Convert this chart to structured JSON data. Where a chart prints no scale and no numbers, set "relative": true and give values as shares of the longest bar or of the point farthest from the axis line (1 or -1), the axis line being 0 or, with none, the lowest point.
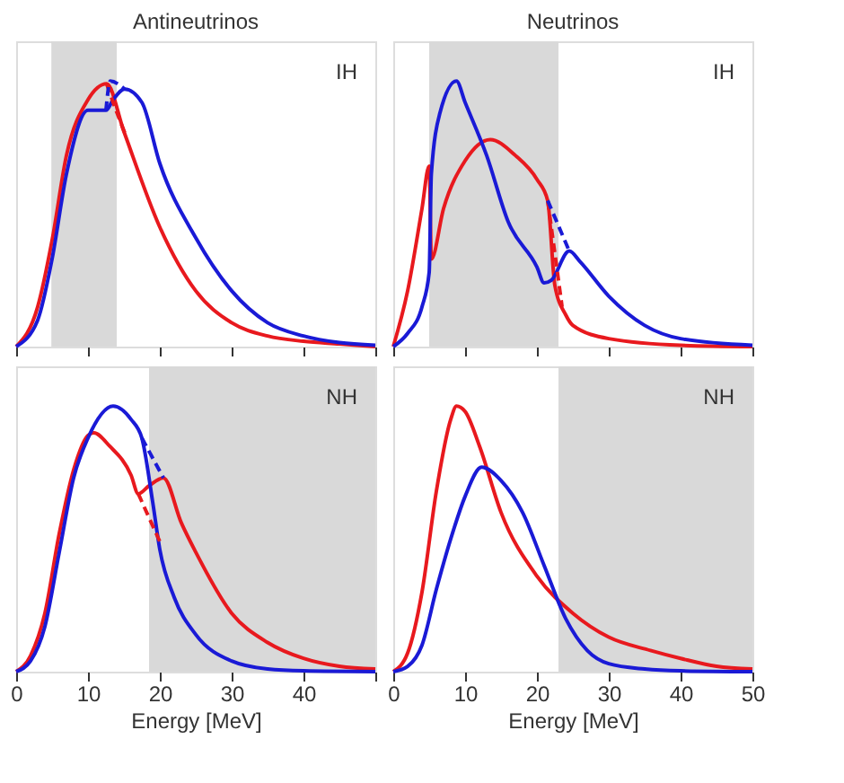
{
  "chart_data": [
    {
      "type": "line",
      "title": "Antineutrinos",
      "xlim": [
        0,
        50
      ],
      "xticks": [
        0,
        10,
        20,
        30,
        40,
        50
      ],
      "tick_labels": false,
      "relative": true,
      "grid": false,
      "annotations": [
        "IH"
      ],
      "bands": [
        {
          "axis": "x",
          "from": 4.9,
          "to": 14.0,
          "color": "#d9d9d9"
        }
      ],
      "series": [
        {
          "color": "#e8191e",
          "line_style": "solid",
          "x": [
            0,
            3,
            5,
            7,
            10,
            12.6,
            15,
            20,
            25,
            30,
            35,
            40,
            45,
            50
          ],
          "values": [
            0,
            0.15,
            0.4,
            0.72,
            0.93,
            0.99,
            0.81,
            0.45,
            0.21,
            0.09,
            0.04,
            0.02,
            0.01,
            0
          ]
        },
        {
          "color": "#1a1ad6",
          "line_style": "solid",
          "x": [
            0,
            3,
            5,
            7,
            10,
            12.5,
            13.5,
            15.1,
            17.5,
            20,
            25,
            30,
            35,
            40,
            45,
            50
          ],
          "values": [
            0,
            0.1,
            0.33,
            0.65,
            0.89,
            0.89,
            0.93,
            0.97,
            0.92,
            0.69,
            0.41,
            0.21,
            0.09,
            0.04,
            0.015,
            0.005
          ]
        },
        {
          "color": "#e8191e",
          "line_style": "dashed",
          "x": [
            12.6,
            13.5,
            15.2
          ],
          "values": [
            0.99,
            0.92,
            0.8
          ]
        },
        {
          "color": "#1a1ad6",
          "line_style": "dashed",
          "x": [
            12.5,
            13.1,
            15.1
          ],
          "values": [
            0.89,
            1.0,
            0.97
          ]
        }
      ]
    },
    {
      "type": "line",
      "title": "Neutrinos",
      "xlim": [
        0,
        50
      ],
      "xticks": [
        0,
        10,
        20,
        30,
        40,
        50
      ],
      "tick_labels": false,
      "relative": true,
      "grid": false,
      "annotations": [
        "IH"
      ],
      "bands": [
        {
          "axis": "x",
          "from": 5,
          "to": 23,
          "color": "#d9d9d9"
        }
      ],
      "series": [
        {
          "color": "#e8191e",
          "line_style": "solid",
          "x": [
            0,
            2,
            4,
            5,
            5.3,
            7,
            10,
            13.5,
            17,
            20,
            21.5,
            22.5,
            24,
            25,
            30,
            40,
            50
          ],
          "values": [
            0,
            0.21,
            0.52,
            0.68,
            0.33,
            0.52,
            0.7,
            0.78,
            0.72,
            0.63,
            0.55,
            0.23,
            0.12,
            0.08,
            0.03,
            0.005,
            0
          ]
        },
        {
          "color": "#1a1ad6",
          "line_style": "solid",
          "x": [
            0,
            2,
            4,
            5,
            5.3,
            6.5,
            8.8,
            10,
            13,
            16,
            20,
            21,
            22,
            24.5,
            26,
            30,
            35,
            40,
            50
          ],
          "values": [
            0,
            0.05,
            0.15,
            0.28,
            0.65,
            0.88,
            1.0,
            0.92,
            0.72,
            0.47,
            0.3,
            0.24,
            0.25,
            0.36,
            0.32,
            0.19,
            0.08,
            0.03,
            0.005
          ]
        },
        {
          "color": "#e8191e",
          "line_style": "dashed",
          "x": [
            21.5,
            23.5
          ],
          "values": [
            0.55,
            0.15
          ]
        },
        {
          "color": "#1a1ad6",
          "line_style": "dashed",
          "x": [
            21.5,
            24.5
          ],
          "values": [
            0.55,
            0.36
          ]
        }
      ]
    },
    {
      "type": "line",
      "xlabel": "Energy [MeV]",
      "xlim": [
        0,
        50
      ],
      "xticks": [
        0,
        10,
        20,
        30,
        40,
        {
          "value": 50,
          "label": null
        }
      ],
      "tick_labels": "x",
      "relative": true,
      "grid": false,
      "annotations": [
        "NH"
      ],
      "bands": [
        {
          "axis": "x",
          "from": 18.5,
          "to": 50,
          "color": "#d9d9d9"
        }
      ],
      "series": [
        {
          "color": "#e8191e",
          "line_style": "solid",
          "x": [
            0,
            2,
            4,
            6,
            8,
            10,
            10.8,
            13,
            16,
            17,
            18.5,
            20.5,
            23,
            25,
            30,
            35,
            40,
            45,
            50
          ],
          "values": [
            0,
            0.06,
            0.22,
            0.52,
            0.76,
            0.89,
            0.9,
            0.85,
            0.74,
            0.67,
            0.7,
            0.73,
            0.56,
            0.45,
            0.22,
            0.11,
            0.05,
            0.02,
            0.01
          ]
        },
        {
          "color": "#1a1ad6",
          "line_style": "solid",
          "x": [
            0,
            2,
            4,
            6,
            8,
            10,
            13.5,
            16,
            17.5,
            19,
            20,
            22,
            25,
            30,
            35,
            40,
            50
          ],
          "values": [
            0,
            0.04,
            0.17,
            0.45,
            0.73,
            0.88,
            1.0,
            0.95,
            0.88,
            0.64,
            0.46,
            0.28,
            0.14,
            0.04,
            0.01,
            0.003,
            0
          ]
        },
        {
          "color": "#e8191e",
          "line_style": "dashed",
          "x": [
            17,
            20
          ],
          "values": [
            0.67,
            0.49
          ]
        },
        {
          "color": "#1a1ad6",
          "line_style": "dashed",
          "x": [
            17.5,
            20.5
          ],
          "values": [
            0.88,
            0.73
          ]
        }
      ]
    },
    {
      "type": "line",
      "xlabel": "Energy [MeV]",
      "xlim": [
        0,
        50
      ],
      "xticks": [
        0,
        10,
        20,
        30,
        40,
        50
      ],
      "tick_labels": "x",
      "relative": true,
      "grid": false,
      "annotations": [
        "NH"
      ],
      "bands": [
        {
          "axis": "x",
          "from": 23,
          "to": 50,
          "color": "#d9d9d9"
        }
      ],
      "series": [
        {
          "color": "#e8191e",
          "line_style": "solid",
          "x": [
            0,
            2,
            4,
            6,
            8,
            8.8,
            10,
            12,
            15,
            20,
            25,
            30,
            35.8,
            40,
            45,
            50
          ],
          "values": [
            0,
            0.07,
            0.3,
            0.68,
            0.95,
            1.0,
            0.98,
            0.85,
            0.6,
            0.36,
            0.22,
            0.13,
            0.08,
            0.05,
            0.02,
            0.01
          ]
        },
        {
          "color": "#1a1ad6",
          "line_style": "solid",
          "x": [
            0,
            2,
            4,
            6,
            8,
            10,
            12.3,
            15,
            18,
            21,
            24,
            27,
            30,
            35,
            40,
            50
          ],
          "values": [
            0,
            0.02,
            0.1,
            0.31,
            0.5,
            0.66,
            0.77,
            0.72,
            0.6,
            0.4,
            0.2,
            0.08,
            0.03,
            0.01,
            0.003,
            0
          ]
        }
      ]
    }
  ]
}
